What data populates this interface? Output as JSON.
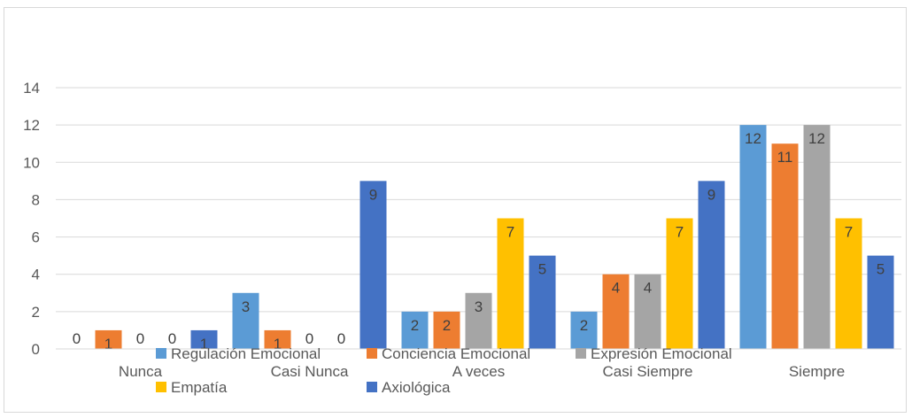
{
  "chart_data": {
    "type": "bar",
    "title": "",
    "xlabel": "",
    "ylabel": "",
    "ylim": [
      0,
      14
    ],
    "yticks": [
      0,
      2,
      4,
      6,
      8,
      10,
      12,
      14
    ],
    "grid": true,
    "legend_position": "bottom",
    "categories": [
      "Nunca",
      "Casi Nunca",
      "A veces",
      "Casi Siempre",
      "Siempre"
    ],
    "series": [
      {
        "name": "Regulación Emocional",
        "color": "#5B9BD5",
        "values": [
          0,
          3,
          2,
          2,
          12
        ]
      },
      {
        "name": "Conciencia Emocional",
        "color": "#ED7D31",
        "values": [
          1,
          1,
          2,
          4,
          11
        ]
      },
      {
        "name": "Expresión Emocional",
        "color": "#A5A5A5",
        "values": [
          0,
          0,
          3,
          4,
          12
        ]
      },
      {
        "name": "Empatía",
        "color": "#FFC000",
        "values": [
          0,
          0,
          7,
          7,
          7
        ]
      },
      {
        "name": "Axiológica",
        "color": "#4472C4",
        "values": [
          1,
          9,
          5,
          9,
          5
        ]
      }
    ]
  }
}
